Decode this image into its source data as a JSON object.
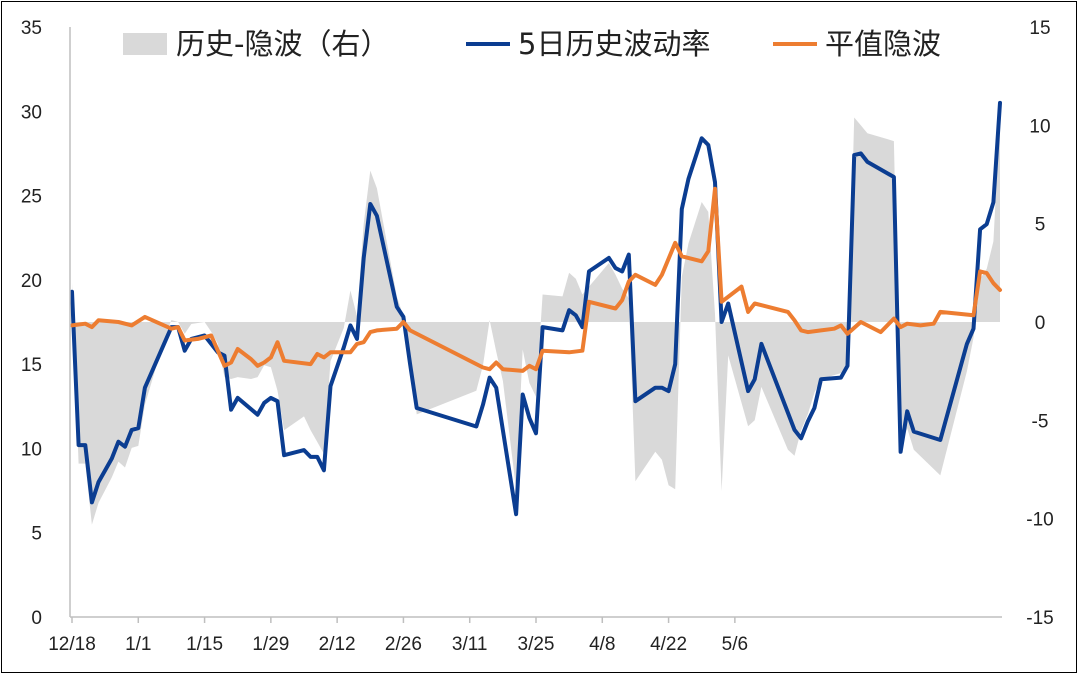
{
  "chart_data": {
    "type": "line",
    "title": "",
    "xlabel": "",
    "ylabel": "",
    "y_left_lim": [
      0,
      35
    ],
    "y_right_lim": [
      -15,
      15
    ],
    "y_left_ticks": [
      "0",
      "5",
      "10",
      "15",
      "20",
      "25",
      "30",
      "35"
    ],
    "y_right_ticks": [
      "-15",
      "-10",
      "-5",
      "0",
      "5",
      "10",
      "15"
    ],
    "x_tick_labels": [
      "12/18",
      "1/1",
      "1/15",
      "1/29",
      "2/12",
      "2/26",
      "3/11",
      "3/25",
      "4/8",
      "4/22",
      "5/6"
    ],
    "grid": false,
    "legend_position": "top",
    "legend": {
      "spread_label": "历史-隐波（右）",
      "hv_label": "5日历史波动率",
      "iv_label": "平值隐波"
    },
    "colors": {
      "spread": "#d9d9d9",
      "hv": "#0b3d91",
      "iv": "#ed7d31"
    },
    "series": [
      {
        "name": "5日历史波动率",
        "axis": "left",
        "points": [
          [
            0,
            19.3
          ],
          [
            1,
            10.2
          ],
          [
            2,
            10.2
          ],
          [
            3,
            6.8
          ],
          [
            4,
            8.0
          ],
          [
            6,
            9.4
          ],
          [
            7,
            10.4
          ],
          [
            8,
            10.1
          ],
          [
            9,
            11.1
          ],
          [
            10,
            11.2
          ],
          [
            11,
            13.6
          ],
          [
            14,
            16.3
          ],
          [
            15,
            17.2
          ],
          [
            16,
            17.2
          ],
          [
            17,
            15.8
          ],
          [
            18,
            16.5
          ],
          [
            20,
            16.7
          ],
          [
            21,
            16.2
          ],
          [
            22,
            15.7
          ],
          [
            23,
            15.5
          ],
          [
            24,
            12.3
          ],
          [
            25,
            13.0
          ],
          [
            28,
            12.0
          ],
          [
            29,
            12.7
          ],
          [
            30,
            13.0
          ],
          [
            31,
            12.8
          ],
          [
            32,
            9.6
          ],
          [
            35,
            9.9
          ],
          [
            36,
            9.5
          ],
          [
            37,
            9.5
          ],
          [
            38,
            8.7
          ],
          [
            39,
            13.7
          ],
          [
            41,
            16.0
          ],
          [
            42,
            17.3
          ],
          [
            43,
            16.5
          ],
          [
            44,
            21.3
          ],
          [
            45,
            24.5
          ],
          [
            46,
            23.8
          ],
          [
            49,
            18.4
          ],
          [
            50,
            17.8
          ],
          [
            51,
            15.0
          ],
          [
            52,
            12.4
          ],
          [
            61,
            11.3
          ],
          [
            62,
            12.6
          ],
          [
            63,
            14.2
          ],
          [
            64,
            13.6
          ],
          [
            67,
            6.1
          ],
          [
            68,
            13.2
          ],
          [
            69,
            11.8
          ],
          [
            70,
            10.9
          ],
          [
            71,
            17.2
          ],
          [
            74,
            17.0
          ],
          [
            75,
            18.2
          ],
          [
            76,
            17.9
          ],
          [
            77,
            17.2
          ],
          [
            78,
            20.5
          ],
          [
            81,
            21.3
          ],
          [
            82,
            20.7
          ],
          [
            83,
            20.5
          ],
          [
            84,
            21.5
          ],
          [
            85,
            12.8
          ],
          [
            88,
            13.6
          ],
          [
            89,
            13.6
          ],
          [
            90,
            13.4
          ],
          [
            91,
            15.0
          ],
          [
            92,
            24.2
          ],
          [
            93,
            26.0
          ],
          [
            95,
            28.4
          ],
          [
            96,
            28.0
          ],
          [
            97,
            25.8
          ],
          [
            98,
            17.5
          ],
          [
            99,
            18.6
          ],
          [
            102,
            13.4
          ],
          [
            103,
            14.1
          ],
          [
            104,
            16.2
          ],
          [
            109,
            11.1
          ],
          [
            110,
            10.6
          ],
          [
            111,
            11.6
          ],
          [
            112,
            12.4
          ],
          [
            113,
            14.1
          ],
          [
            116,
            14.2
          ],
          [
            117,
            14.9
          ],
          [
            118,
            27.4
          ],
          [
            119,
            27.5
          ],
          [
            120,
            27.0
          ],
          [
            124,
            26.1
          ],
          [
            125,
            9.8
          ],
          [
            126,
            12.2
          ],
          [
            127,
            11.0
          ],
          [
            131,
            10.5
          ],
          [
            135,
            16.2
          ],
          [
            136,
            17.1
          ],
          [
            137,
            23.0
          ],
          [
            138,
            23.3
          ],
          [
            139,
            24.6
          ],
          [
            140,
            30.5
          ]
        ]
      },
      {
        "name": "平值隐波",
        "axis": "left",
        "points": [
          [
            0,
            17.3
          ],
          [
            2,
            17.4
          ],
          [
            3,
            17.2
          ],
          [
            4,
            17.6
          ],
          [
            7,
            17.5
          ],
          [
            9,
            17.3
          ],
          [
            11,
            17.8
          ],
          [
            15,
            17.1
          ],
          [
            16,
            17.2
          ],
          [
            17,
            16.4
          ],
          [
            19,
            16.5
          ],
          [
            21,
            16.7
          ],
          [
            23,
            14.9
          ],
          [
            24,
            15.1
          ],
          [
            25,
            15.9
          ],
          [
            27,
            15.3
          ],
          [
            28,
            14.9
          ],
          [
            29,
            15.1
          ],
          [
            30,
            15.4
          ],
          [
            31,
            16.3
          ],
          [
            32,
            15.2
          ],
          [
            36,
            15.0
          ],
          [
            37,
            15.6
          ],
          [
            38,
            15.4
          ],
          [
            39,
            15.7
          ],
          [
            42,
            15.7
          ],
          [
            43,
            16.2
          ],
          [
            44,
            16.3
          ],
          [
            45,
            16.9
          ],
          [
            46,
            17.0
          ],
          [
            49,
            17.1
          ],
          [
            50,
            17.5
          ],
          [
            51,
            17.0
          ],
          [
            62,
            14.8
          ],
          [
            63,
            14.7
          ],
          [
            64,
            15.1
          ],
          [
            65,
            14.7
          ],
          [
            68,
            14.6
          ],
          [
            69,
            14.9
          ],
          [
            70,
            14.7
          ],
          [
            71,
            15.8
          ],
          [
            75,
            15.7
          ],
          [
            77,
            15.8
          ],
          [
            78,
            18.7
          ],
          [
            82,
            18.3
          ],
          [
            83,
            18.8
          ],
          [
            84,
            19.9
          ],
          [
            85,
            20.3
          ],
          [
            88,
            19.7
          ],
          [
            89,
            20.3
          ],
          [
            91,
            22.2
          ],
          [
            92,
            21.4
          ],
          [
            95,
            21.1
          ],
          [
            96,
            21.7
          ],
          [
            97,
            25.4
          ],
          [
            98,
            18.7
          ],
          [
            101,
            19.6
          ],
          [
            102,
            18.1
          ],
          [
            103,
            18.6
          ],
          [
            108,
            18.1
          ],
          [
            109,
            17.6
          ],
          [
            110,
            17.0
          ],
          [
            111,
            16.9
          ],
          [
            113,
            17.0
          ],
          [
            115,
            17.1
          ],
          [
            116,
            17.3
          ],
          [
            117,
            16.8
          ],
          [
            119,
            17.5
          ],
          [
            122,
            16.9
          ],
          [
            124,
            17.7
          ],
          [
            125,
            17.2
          ],
          [
            126,
            17.4
          ],
          [
            128,
            17.3
          ],
          [
            130,
            17.4
          ],
          [
            131,
            18.1
          ],
          [
            136,
            17.9
          ],
          [
            137,
            20.5
          ],
          [
            138,
            20.4
          ],
          [
            139,
            19.8
          ],
          [
            140,
            19.4
          ]
        ]
      },
      {
        "name": "历史-隐波（右）",
        "axis": "right",
        "points": [
          [
            0,
            2.0
          ],
          [
            1,
            -7.2
          ],
          [
            2,
            -7.2
          ],
          [
            3,
            -10.3
          ],
          [
            4,
            -9.2
          ],
          [
            6,
            -7.9
          ],
          [
            7,
            -7.1
          ],
          [
            8,
            -7.4
          ],
          [
            9,
            -6.4
          ],
          [
            10,
            -6.3
          ],
          [
            11,
            -4.2
          ],
          [
            14,
            -0.8
          ],
          [
            15,
            0.1
          ],
          [
            16,
            0.0
          ],
          [
            17,
            -0.6
          ],
          [
            18,
            -0.1
          ],
          [
            20,
            0.0
          ],
          [
            21,
            -0.5
          ],
          [
            22,
            -1.1
          ],
          [
            23,
            -2.8
          ],
          [
            24,
            -2.9
          ],
          [
            25,
            -2.8
          ],
          [
            27,
            -2.9
          ],
          [
            28,
            -2.8
          ],
          [
            29,
            -2.2
          ],
          [
            30,
            -2.3
          ],
          [
            31,
            -3.5
          ],
          [
            32,
            -5.5
          ],
          [
            35,
            -4.8
          ],
          [
            36,
            -5.5
          ],
          [
            37,
            -6.1
          ],
          [
            38,
            -6.7
          ],
          [
            39,
            -2.0
          ],
          [
            41,
            -0.3
          ],
          [
            42,
            1.6
          ],
          [
            43,
            0.3
          ],
          [
            44,
            5.0
          ],
          [
            45,
            7.7
          ],
          [
            46,
            6.8
          ],
          [
            49,
            1.3
          ],
          [
            50,
            0.3
          ],
          [
            51,
            -1.8
          ],
          [
            52,
            -4.7
          ],
          [
            61,
            -3.5
          ],
          [
            62,
            -2.2
          ],
          [
            63,
            0.1
          ],
          [
            64,
            -1.5
          ],
          [
            65,
            -3.0
          ],
          [
            67,
            -8.5
          ],
          [
            68,
            -1.4
          ],
          [
            69,
            -3.1
          ],
          [
            70,
            -3.8
          ],
          [
            71,
            1.4
          ],
          [
            74,
            1.3
          ],
          [
            75,
            2.5
          ],
          [
            76,
            2.2
          ],
          [
            77,
            1.4
          ],
          [
            78,
            1.8
          ],
          [
            81,
            3.0
          ],
          [
            82,
            2.4
          ],
          [
            83,
            1.7
          ],
          [
            84,
            1.2
          ],
          [
            85,
            -8.1
          ],
          [
            88,
            -6.6
          ],
          [
            89,
            -7.0
          ],
          [
            90,
            -8.3
          ],
          [
            91,
            -8.5
          ],
          [
            92,
            2.3
          ],
          [
            93,
            4.0
          ],
          [
            95,
            6.1
          ],
          [
            96,
            5.6
          ],
          [
            97,
            0.4
          ],
          [
            98,
            -8.6
          ],
          [
            99,
            -1.7
          ],
          [
            102,
            -5.3
          ],
          [
            103,
            -5.0
          ],
          [
            104,
            -3.3
          ],
          [
            108,
            -6.5
          ],
          [
            109,
            -6.8
          ],
          [
            110,
            -5.5
          ],
          [
            111,
            -4.7
          ],
          [
            112,
            -3.6
          ],
          [
            113,
            -2.9
          ],
          [
            116,
            -2.6
          ],
          [
            117,
            -2.3
          ],
          [
            118,
            10.4
          ],
          [
            119,
            10.0
          ],
          [
            120,
            9.6
          ],
          [
            124,
            9.2
          ],
          [
            125,
            -6.5
          ],
          [
            126,
            -5.4
          ],
          [
            127,
            -6.5
          ],
          [
            131,
            -7.8
          ],
          [
            135,
            -2.5
          ],
          [
            136,
            -0.8
          ],
          [
            137,
            2.2
          ],
          [
            138,
            2.7
          ],
          [
            139,
            4.1
          ],
          [
            140,
            10.5
          ]
        ]
      }
    ]
  }
}
